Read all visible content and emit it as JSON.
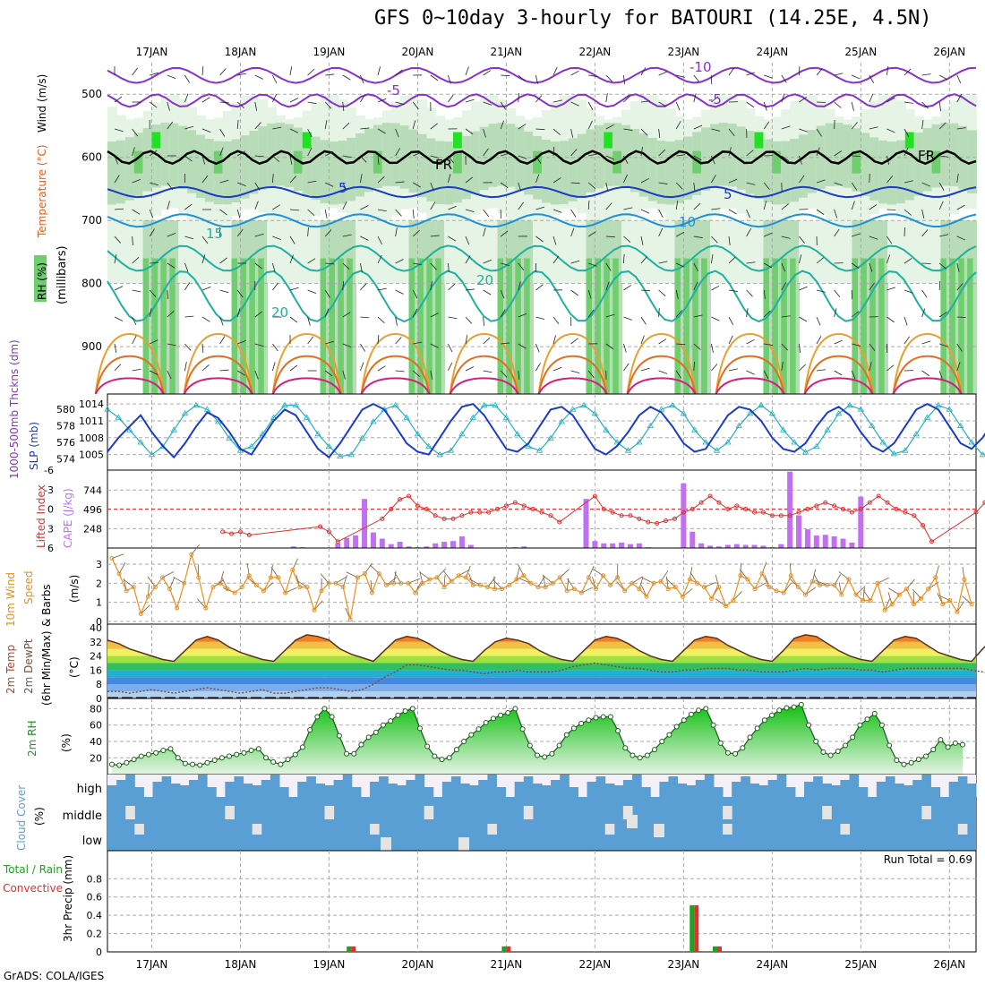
{
  "title": "GFS 0~10day 3-hourly for BATOURI (14.25E, 4.5N)",
  "footer": "GrADS: COLA/IGES",
  "days": [
    "17JAN",
    "18JAN",
    "19JAN",
    "20JAN",
    "21JAN",
    "22JAN",
    "23JAN",
    "24JAN",
    "25JAN",
    "26JAN"
  ],
  "colors": {
    "rh_light": "#e6f4e6",
    "rh_mid": "#b7dcb7",
    "rh_green": "#6fcf6f",
    "rh_bright": "#22e022",
    "grid": "#aaaaaa",
    "slp": "#1a3cc8",
    "thick": "#22b0c0",
    "cape": "#c070f0",
    "li": "#e03030",
    "wind": "#e89020",
    "cloud": "#5a9fd4",
    "rain": "#e03030",
    "conv": "#22a022"
  },
  "chart_data": [
    {
      "type": "heatmap",
      "name": "upper-air",
      "labels": {
        "rh": "RH (%)",
        "temp": "Temperature (°C)",
        "wind": "Wind (m/s)",
        "axis": "(millibars)"
      },
      "yticks": [
        "500",
        "600",
        "700",
        "800",
        "900"
      ],
      "ylim": [
        975,
        450
      ],
      "contour_labels": [
        "-10",
        "-5",
        "FR",
        "5",
        "10",
        "15",
        "20",
        "20",
        "FR",
        "-5",
        "5"
      ]
    },
    {
      "type": "line",
      "name": "slp-thickness",
      "labels": {
        "left": "1000-500mb Thckns (dm)",
        "right": "SLP (mb)"
      },
      "left_ticks": [
        "580",
        "578",
        "576",
        "574"
      ],
      "right_ticks": [
        "1014",
        "1011",
        "1008",
        "1005"
      ],
      "slp": [
        1005.5,
        1008,
        1010,
        1012,
        1009,
        1006.5,
        1004.5,
        1007,
        1010,
        1012.5,
        1011.5,
        1009,
        1006,
        1005,
        1008,
        1011,
        1013,
        1012,
        1009,
        1006,
        1004.5,
        1007,
        1010,
        1013,
        1014,
        1013,
        1010,
        1007,
        1005.5,
        1005,
        1008,
        1011,
        1013.5,
        1014,
        1012,
        1009,
        1006,
        1005.5,
        1007,
        1010,
        1013,
        1013.5,
        1012,
        1009,
        1006,
        1005,
        1006.5,
        1009,
        1012,
        1013.5,
        1012.5,
        1010,
        1007,
        1005.5,
        1006,
        1009,
        1012,
        1013.5,
        1013,
        1011,
        1008,
        1006,
        1005.5,
        1007,
        1010,
        1012.5,
        1013.5,
        1012,
        1009,
        1006.5,
        1005.5,
        1007,
        1010,
        1013,
        1014,
        1013,
        1010,
        1007,
        1006,
        1008,
        1011,
        1013,
        1014
      ],
      "thick": [
        580,
        579,
        577.5,
        576,
        574.5,
        575.5,
        577.5,
        579.5,
        580.5,
        580,
        578.5,
        576.5,
        575,
        575.5,
        577,
        579,
        580.5,
        580.5,
        579,
        577,
        575.5,
        574.3,
        574.5,
        576.5,
        578.5,
        580,
        580.5,
        579,
        577,
        575.5,
        574.5,
        575,
        577,
        579,
        580.5,
        580.5,
        579,
        577,
        575.5,
        575,
        576.5,
        578.5,
        580,
        580.5,
        579.5,
        577.5,
        576,
        575,
        576,
        578,
        580,
        580.5,
        579.5,
        577.5,
        576,
        575,
        576,
        578,
        579.5,
        580.5,
        579.5,
        577.5,
        576,
        574.8,
        575.5,
        577.5,
        579.5,
        580.5,
        580,
        578,
        576,
        574.6,
        575,
        577,
        579,
        580.5,
        580,
        578,
        576,
        574.5,
        575,
        574.8,
        575
      ]
    },
    {
      "type": "bar",
      "name": "cape-li",
      "labels": {
        "li": "Lifted Index",
        "cape": "CAPE (J/kg)"
      },
      "li_ticks": [
        "-6",
        "-3",
        "0",
        "3",
        "6"
      ],
      "cape_ticks": [
        "744",
        "496",
        "248"
      ],
      "cape": [
        0,
        0,
        0,
        0,
        0,
        0,
        0,
        0,
        0,
        0,
        0,
        0,
        0,
        0,
        0,
        0,
        20,
        10,
        0,
        0,
        0,
        60,
        130,
        160,
        630,
        200,
        120,
        50,
        80,
        20,
        10,
        20,
        60,
        80,
        90,
        150,
        40,
        0,
        0,
        0,
        0,
        10,
        20,
        0,
        0,
        0,
        0,
        0,
        0,
        630,
        90,
        60,
        60,
        70,
        50,
        60,
        10,
        0,
        0,
        0,
        830,
        210,
        60,
        30,
        20,
        40,
        50,
        40,
        40,
        30,
        10,
        50,
        980,
        420,
        240,
        160,
        170,
        150,
        120,
        70,
        660,
        0,
        0,
        0,
        0,
        0,
        0,
        0,
        0,
        0,
        0,
        0,
        0,
        0
      ],
      "li": [
        6,
        7,
        7,
        7,
        7,
        7,
        7,
        7,
        3.5,
        3.8,
        3.5,
        4,
        6,
        7,
        7,
        7,
        7,
        7,
        7,
        2.7,
        3.5,
        5,
        7,
        7,
        7,
        7,
        1.5,
        0,
        -1.5,
        -2,
        -0.5,
        0,
        1,
        1.5,
        1.5,
        1,
        0.5,
        0.5,
        0.5,
        0,
        -0.5,
        -1,
        -0.5,
        0,
        0.5,
        1,
        2,
        7,
        7,
        7,
        -2,
        0,
        0.5,
        1,
        1,
        1.5,
        2,
        2.2,
        1.8,
        1.5,
        0.5,
        0,
        -1,
        -2,
        -1,
        0,
        -0.5,
        0,
        0.5,
        0.5,
        1,
        1,
        1,
        0.5,
        0,
        -0.5,
        -1,
        -0.5,
        0,
        0.5,
        0,
        -1,
        -2,
        -1,
        0,
        0.5,
        1,
        2.5,
        5,
        7,
        7,
        7,
        7,
        0.5,
        -1,
        0.5,
        2.5,
        6,
        7
      ]
    },
    {
      "type": "line",
      "name": "wind",
      "labels": {
        "main": "10m Wind",
        "sub1": "Speed",
        "sub2": "& Barbs",
        "unit": "(m/s)"
      },
      "yticks": [
        "3",
        "2",
        "1",
        "0"
      ],
      "speed": [
        3.3,
        2.5,
        1.6,
        1.8,
        0.4,
        1.3,
        1.8,
        2.3,
        1.7,
        0.7,
        2,
        3.5,
        2.3,
        0.7,
        1.8,
        2,
        1.7,
        1.5,
        1.8,
        2.4,
        1.9,
        1.6,
        2.3,
        2.3,
        1.5,
        2.7,
        1.8,
        1.8,
        0.6,
        1.6,
        2,
        2,
        1.8,
        0.1,
        2.3,
        2.5,
        1.5,
        2.5,
        1.9,
        2,
        2,
        2,
        1.5,
        2,
        2.2,
        2.3,
        1.8,
        2.1,
        2.4,
        2.3,
        1.9,
        1.9,
        1.8,
        1.7,
        1.7,
        1.9,
        2.2,
        2.4,
        2,
        1.8,
        1.8,
        2,
        2.3,
        1.6,
        1.7,
        1.5,
        2.3,
        1.7,
        2.4,
        1.9,
        2.3,
        1.6,
        2,
        1.7,
        1.3,
        2,
        2.1,
        1.7,
        1.8,
        1.3,
        2.2,
        2,
        1.8,
        1.2,
        1.8,
        0.8,
        1.1,
        2.4,
        2.2,
        1.7,
        2.5,
        1.8,
        1.6,
        1.5,
        2.4,
        1.8,
        1.4,
        2.1,
        1.9,
        1.9,
        1.9,
        1.4,
        2.2,
        1.4,
        1.1,
        1.1,
        2,
        0.6,
        0.9,
        1.4,
        1.7,
        0.9,
        1.2,
        1.7,
        2.3,
        0.9,
        1.1,
        0.5,
        2.2,
        0.9
      ]
    },
    {
      "type": "area",
      "name": "temperature",
      "labels": {
        "l1": "2m Temp",
        "l2": "2m DewPt",
        "l3": "(6hr Min/Max)",
        "unit": "(°C)"
      },
      "yticks": [
        "40",
        "32",
        "24",
        "16",
        "8",
        "0"
      ],
      "temp": [
        33,
        31,
        28,
        26,
        24,
        22,
        21,
        27,
        33,
        35,
        33,
        29,
        26,
        24,
        22,
        21,
        27,
        33,
        36,
        35,
        33,
        28,
        25,
        23,
        21,
        27,
        33,
        35,
        34,
        31,
        27,
        24,
        22,
        21,
        27,
        32,
        34,
        33,
        31,
        27,
        24,
        22,
        21,
        27,
        33,
        35,
        34,
        31,
        27,
        24,
        22,
        21,
        27,
        33,
        35,
        34,
        30,
        27,
        24,
        22,
        21,
        27,
        34,
        36,
        35,
        31,
        27,
        24,
        22,
        21,
        27,
        33,
        35,
        34,
        30,
        26,
        24,
        22,
        21,
        28,
        34,
        35,
        35,
        31,
        27,
        24,
        22,
        21,
        27,
        34,
        35,
        35,
        31,
        26,
        22,
        21,
        21
      ],
      "dew": [
        4,
        4,
        3,
        4,
        5,
        4,
        3,
        4,
        5,
        6,
        5,
        4,
        3,
        4,
        5,
        3,
        3,
        4,
        5,
        6,
        6,
        5,
        4,
        5,
        8,
        12,
        15,
        19,
        19,
        18,
        17,
        16,
        16,
        15,
        14,
        15,
        15,
        16,
        15,
        15,
        15,
        16,
        18,
        19,
        20,
        19,
        18,
        17,
        17,
        16,
        15,
        15,
        16,
        16,
        17,
        17,
        17,
        16,
        16,
        15,
        15,
        15,
        16,
        17,
        16,
        17,
        17,
        17,
        16,
        16,
        15,
        16,
        17,
        17,
        17,
        17,
        17,
        17,
        16,
        15,
        14,
        14,
        14,
        9,
        7,
        7,
        8,
        10,
        14,
        17,
        18,
        17,
        11,
        7,
        5,
        4,
        4
      ]
    },
    {
      "type": "area",
      "name": "rh",
      "labels": {
        "main": "2m RH",
        "unit": "(%)"
      },
      "yticks": [
        "80",
        "60",
        "40",
        "20"
      ],
      "rh": [
        12,
        11,
        14,
        18,
        22,
        24,
        26,
        29,
        31,
        20,
        13,
        12,
        11,
        14,
        17,
        20,
        22,
        24,
        26,
        29,
        31,
        20,
        15,
        12,
        18,
        24,
        33,
        54,
        70,
        80,
        70,
        47,
        25,
        25,
        36,
        45,
        51,
        60,
        65,
        72,
        77,
        80,
        56,
        34,
        22,
        18,
        20,
        30,
        40,
        48,
        55,
        63,
        68,
        72,
        75,
        80,
        55,
        35,
        23,
        21,
        25,
        35,
        48,
        56,
        62,
        66,
        69,
        70,
        70,
        53,
        32,
        23,
        20,
        23,
        30,
        40,
        48,
        58,
        66,
        73,
        78,
        80,
        60,
        38,
        26,
        25,
        32,
        45,
        56,
        66,
        72,
        78,
        81,
        82,
        85,
        60,
        40,
        27,
        23,
        28,
        35,
        45,
        60,
        67,
        74,
        60,
        35,
        17,
        12,
        14,
        18,
        22,
        30,
        42,
        33,
        38,
        36
      ]
    },
    {
      "type": "heatmap",
      "name": "cloud",
      "labels": {
        "main": "Cloud Cover",
        "unit": "(%)",
        "high": "high",
        "middle": "middle",
        "low": "low"
      }
    },
    {
      "type": "bar",
      "name": "precip",
      "labels": {
        "main": "3hr Precip (mm)",
        "total": "Total / Rain",
        "conv": "Convective",
        "run_total": "Run Total = 0.69"
      },
      "yticks": [
        "0.8",
        "0.6",
        "0.4",
        "0.2",
        "0"
      ],
      "events": [
        {
          "x": 19.25,
          "value": 0.06
        },
        {
          "x": 21.0,
          "value": 0.06
        },
        {
          "x": 23.12,
          "value": 0.51
        },
        {
          "x": 23.38,
          "value": 0.06
        }
      ]
    }
  ]
}
